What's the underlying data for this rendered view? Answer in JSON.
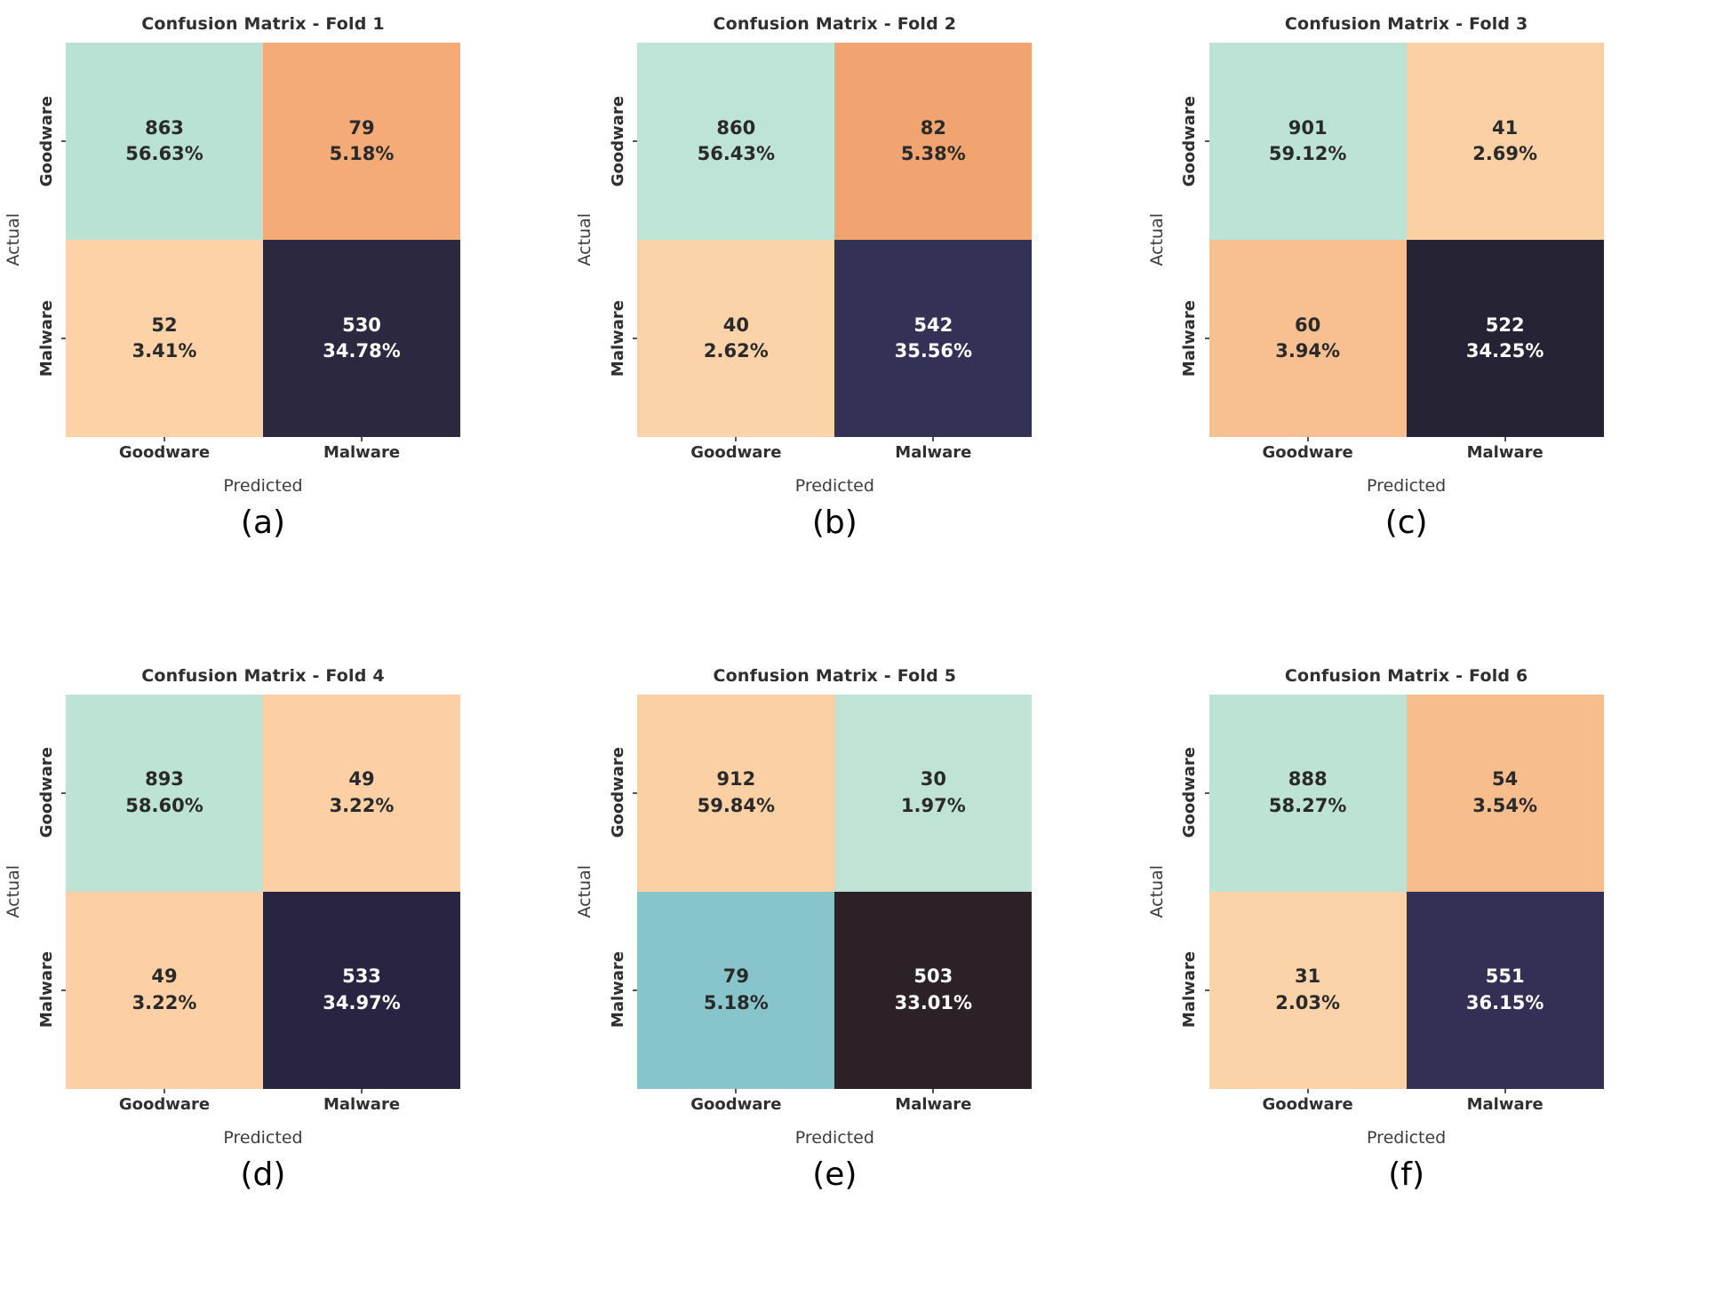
{
  "chart_data": [
    {
      "type": "heatmap",
      "title": "Confusion Matrix - Fold 1",
      "caption": "(a)",
      "xlabel": "Predicted",
      "ylabel": "Actual",
      "x_categories": [
        "Goodware",
        "Malware"
      ],
      "y_categories": [
        "Goodware",
        "Malware"
      ],
      "values": [
        [
          863,
          79
        ],
        [
          52,
          530
        ]
      ],
      "percents": [
        [
          "56.63%",
          "5.18%"
        ],
        [
          "3.41%",
          "34.78%"
        ]
      ],
      "cell_colors": [
        [
          "#b9e2d4",
          "#f4ab77"
        ],
        [
          "#fcd2a6",
          "#2b2840"
        ]
      ],
      "text_colors": [
        [
          "#2a2a2a",
          "#2a2a2a"
        ],
        [
          "#2a2a2a",
          "#ffffff"
        ]
      ]
    },
    {
      "type": "heatmap",
      "title": "Confusion Matrix - Fold 2",
      "caption": "(b)",
      "xlabel": "Predicted",
      "ylabel": "Actual",
      "x_categories": [
        "Goodware",
        "Malware"
      ],
      "y_categories": [
        "Goodware",
        "Malware"
      ],
      "values": [
        [
          860,
          82
        ],
        [
          40,
          542
        ]
      ],
      "percents": [
        [
          "56.43%",
          "5.38%"
        ],
        [
          "2.62%",
          "35.56%"
        ]
      ],
      "cell_colors": [
        [
          "#bee4d7",
          "#f2a470"
        ],
        [
          "#fcd3a9",
          "#343156"
        ]
      ],
      "text_colors": [
        [
          "#2a2a2a",
          "#2a2a2a"
        ],
        [
          "#2a2a2a",
          "#ffffff"
        ]
      ]
    },
    {
      "type": "heatmap",
      "title": "Confusion Matrix - Fold 3",
      "caption": "(c)",
      "xlabel": "Predicted",
      "ylabel": "Actual",
      "x_categories": [
        "Goodware",
        "Malware"
      ],
      "y_categories": [
        "Goodware",
        "Malware"
      ],
      "values": [
        [
          901,
          41
        ],
        [
          60,
          522
        ]
      ],
      "percents": [
        [
          "59.12%",
          "2.69%"
        ],
        [
          "3.94%",
          "34.25%"
        ]
      ],
      "cell_colors": [
        [
          "#bce3d6",
          "#fbd0a5"
        ],
        [
          "#f8c091",
          "#262335"
        ]
      ],
      "text_colors": [
        [
          "#2a2a2a",
          "#2a2a2a"
        ],
        [
          "#2a2a2a",
          "#ffffff"
        ]
      ]
    },
    {
      "type": "heatmap",
      "title": "Confusion Matrix - Fold 4",
      "caption": "(d)",
      "xlabel": "Predicted",
      "ylabel": "Actual",
      "x_categories": [
        "Goodware",
        "Malware"
      ],
      "y_categories": [
        "Goodware",
        "Malware"
      ],
      "values": [
        [
          893,
          49
        ],
        [
          49,
          533
        ]
      ],
      "percents": [
        [
          "58.60%",
          "3.22%"
        ],
        [
          "3.22%",
          "34.97%"
        ]
      ],
      "cell_colors": [
        [
          "#bde3d5",
          "#fcd0a4"
        ],
        [
          "#fcd0a4",
          "#282441"
        ]
      ],
      "text_colors": [
        [
          "#2a2a2a",
          "#2a2a2a"
        ],
        [
          "#2a2a2a",
          "#ffffff"
        ]
      ]
    },
    {
      "type": "heatmap",
      "title": "Confusion Matrix - Fold 5",
      "caption": "(e)",
      "xlabel": "Predicted",
      "ylabel": "Actual",
      "x_categories": [
        "Goodware",
        "Malware"
      ],
      "y_categories": [
        "Goodware",
        "Malware"
      ],
      "values": [
        [
          912,
          30
        ],
        [
          79,
          503
        ]
      ],
      "percents": [
        [
          "59.84%",
          "1.97%"
        ],
        [
          "5.18%",
          "33.01%"
        ]
      ],
      "cell_colors": [
        [
          "#fbd0a4",
          "#bfe4d6"
        ],
        [
          "#87c5cb",
          "#2c2126"
        ]
      ],
      "text_colors": [
        [
          "#2a2a2a",
          "#2a2a2a"
        ],
        [
          "#2a2a2a",
          "#ffffff"
        ]
      ]
    },
    {
      "type": "heatmap",
      "title": "Confusion Matrix - Fold 6",
      "caption": "(f)",
      "xlabel": "Predicted",
      "ylabel": "Actual",
      "x_categories": [
        "Goodware",
        "Malware"
      ],
      "y_categories": [
        "Goodware",
        "Malware"
      ],
      "values": [
        [
          888,
          54
        ],
        [
          31,
          551
        ]
      ],
      "percents": [
        [
          "58.27%",
          "3.54%"
        ],
        [
          "2.03%",
          "36.15%"
        ]
      ],
      "cell_colors": [
        [
          "#bde3d5",
          "#f8bd8c"
        ],
        [
          "#fcd3a9",
          "#343055"
        ]
      ],
      "text_colors": [
        [
          "#2a2a2a",
          "#2a2a2a"
        ],
        [
          "#2a2a2a",
          "#ffffff"
        ]
      ]
    }
  ]
}
